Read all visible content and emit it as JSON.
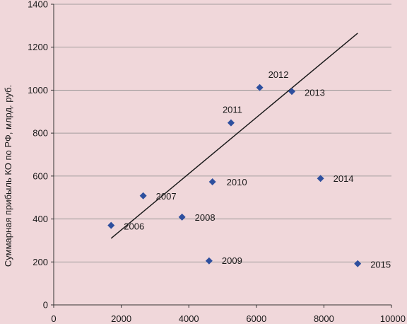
{
  "chart_data": {
    "type": "scatter",
    "title": "",
    "xlabel": "",
    "ylabel": "Суммарная прибыль КО по РФ, млрд. руб.",
    "xlim": [
      0,
      10000
    ],
    "ylim": [
      0,
      1400
    ],
    "x_ticks": [
      0,
      2000,
      4000,
      6000,
      8000,
      10000
    ],
    "y_ticks": [
      0,
      200,
      400,
      600,
      800,
      1000,
      1200,
      1400
    ],
    "grid": "horizontal",
    "legend": "none",
    "series": [
      {
        "points": [
          {
            "x": 1700,
            "y": 370,
            "label": "2006"
          },
          {
            "x": 2650,
            "y": 508,
            "label": "2007"
          },
          {
            "x": 3800,
            "y": 409,
            "label": "2008"
          },
          {
            "x": 4600,
            "y": 205,
            "label": "2009"
          },
          {
            "x": 4700,
            "y": 573,
            "label": "2010"
          },
          {
            "x": 5250,
            "y": 848,
            "label": "2011"
          },
          {
            "x": 6100,
            "y": 1012,
            "label": "2012"
          },
          {
            "x": 7050,
            "y": 994,
            "label": "2013"
          },
          {
            "x": 7900,
            "y": 589,
            "label": "2014"
          },
          {
            "x": 9000,
            "y": 192,
            "label": "2015"
          }
        ]
      }
    ],
    "trendline": {
      "type": "linear",
      "x": [
        1700,
        9000
      ],
      "y": [
        310,
        1265
      ]
    }
  },
  "colors": {
    "background": "#f0d7da",
    "marker": "#2e4f9e",
    "trendline": "#1a1a1a",
    "grid": "#8a8a8a",
    "axis": "#333333"
  }
}
